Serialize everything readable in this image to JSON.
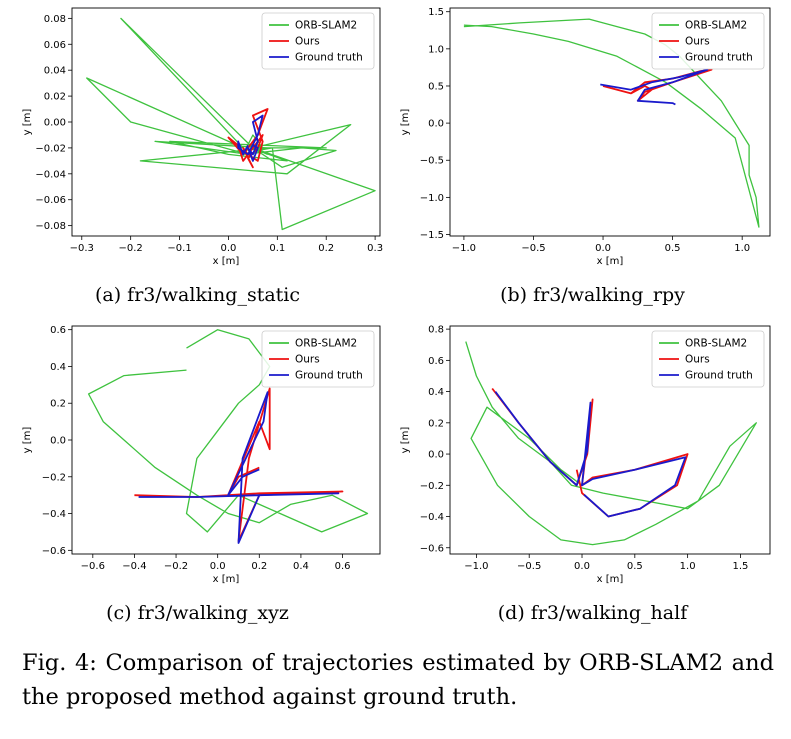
{
  "figure": {
    "caption": "Fig. 4: Comparison of trajectories estimated by ORB-SLAM2 and the proposed method against ground truth."
  },
  "colors": {
    "orb": "#3fc23f",
    "ours": "#ee1111",
    "gt": "#1a1acc"
  },
  "chart_data": [
    {
      "type": "line",
      "subcaption": "(a) fr3/walking_static",
      "xlabel": "x [m]",
      "ylabel": "y [m]",
      "xlim": [
        -0.32,
        0.31
      ],
      "ylim": [
        -0.088,
        0.088
      ],
      "xticks": [
        -0.3,
        -0.2,
        -0.1,
        0.0,
        0.1,
        0.2,
        0.3
      ],
      "xtick_labels": [
        "−0.3",
        "−0.2",
        "−0.1",
        "0.0",
        "0.1",
        "0.2",
        "0.3"
      ],
      "yticks": [
        0.08,
        0.06,
        0.04,
        0.02,
        0.0,
        -0.02,
        -0.04,
        -0.06,
        -0.08
      ],
      "ytick_labels": [
        "0.08",
        "0.06",
        "0.04",
        "0.02",
        "0.00",
        "−0.02",
        "−0.04",
        "−0.06",
        "−0.08"
      ],
      "legend_position": "top-right",
      "series": [
        {
          "name": "ORB-SLAM2",
          "x": [
            0.05,
            -0.22,
            0.03,
            -0.29,
            -0.2,
            0.04,
            -0.15,
            0.08,
            -0.18,
            0.12,
            0.25,
            0.05,
            0.3,
            0.11,
            0.09,
            0.06,
            0.12,
            0.0,
            -0.12,
            0.2,
            0.07,
            0.05,
            0.03,
            0.15,
            0.22,
            0.11,
            0.05,
            0.08
          ],
          "y": [
            -0.02,
            0.08,
            -0.02,
            0.034,
            0.0,
            -0.025,
            -0.015,
            -0.02,
            -0.03,
            -0.04,
            -0.002,
            -0.02,
            -0.053,
            -0.083,
            -0.02,
            -0.022,
            -0.03,
            -0.025,
            -0.015,
            -0.02,
            -0.02,
            -0.01,
            -0.025,
            -0.02,
            -0.022,
            -0.035,
            -0.02,
            -0.025
          ]
        },
        {
          "name": "Ours",
          "x": [
            0.05,
            0.03,
            0.02,
            0.0,
            0.03,
            0.06,
            0.08,
            0.05,
            0.07,
            0.06,
            0.04,
            0.03,
            0.05,
            0.04,
            0.06,
            0.07,
            0.05
          ],
          "y": [
            -0.02,
            -0.03,
            -0.018,
            -0.012,
            -0.025,
            -0.01,
            0.01,
            0.005,
            -0.015,
            -0.03,
            -0.025,
            -0.02,
            -0.035,
            -0.028,
            -0.02,
            -0.01,
            -0.02
          ]
        },
        {
          "name": "Ground truth",
          "x": [
            0.04,
            0.03,
            0.02,
            0.02,
            0.04,
            0.06,
            0.07,
            0.05,
            0.06,
            0.05,
            0.04,
            0.05,
            0.06,
            0.05
          ],
          "y": [
            -0.018,
            -0.025,
            -0.015,
            -0.02,
            -0.025,
            -0.01,
            0.005,
            0.0,
            -0.015,
            -0.025,
            -0.02,
            -0.03,
            -0.02,
            -0.018
          ]
        }
      ]
    },
    {
      "type": "line",
      "subcaption": "(b) fr3/walking_rpy",
      "xlabel": "x [m]",
      "ylabel": "y [m]",
      "xlim": [
        -1.1,
        1.2
      ],
      "ylim": [
        -1.52,
        1.55
      ],
      "xticks": [
        -1.0,
        -0.5,
        0.0,
        0.5,
        1.0
      ],
      "xtick_labels": [
        "−1.0",
        "−0.5",
        "0.0",
        "0.5",
        "1.0"
      ],
      "yticks": [
        1.5,
        1.0,
        0.5,
        0.0,
        -0.5,
        -1.0,
        -1.5
      ],
      "ytick_labels": [
        "1.5",
        "1.0",
        "0.5",
        "0.0",
        "−0.5",
        "−1.0",
        "−1.5"
      ],
      "legend_position": "top-right",
      "series": [
        {
          "name": "ORB-SLAM2",
          "x": [
            -1.0,
            -0.6,
            -0.3,
            -0.1,
            0.1,
            0.3,
            0.45,
            0.55,
            0.7,
            0.85,
            0.95,
            1.05,
            1.05,
            1.1,
            1.12,
            0.95,
            0.7,
            0.45,
            0.1,
            -0.25,
            -0.5,
            -0.8,
            -1.0
          ],
          "y": [
            1.3,
            1.35,
            1.38,
            1.4,
            1.3,
            1.2,
            1.05,
            0.9,
            0.6,
            0.3,
            0.0,
            -0.3,
            -0.7,
            -1.0,
            -1.4,
            -0.2,
            0.2,
            0.55,
            0.9,
            1.1,
            1.2,
            1.3,
            1.32
          ]
        },
        {
          "name": "Ours",
          "x": [
            0.0,
            0.2,
            0.3,
            0.5,
            0.7,
            0.78,
            0.5,
            0.3,
            0.25,
            0.35,
            0.3,
            0.2
          ],
          "y": [
            0.5,
            0.4,
            0.55,
            0.6,
            0.7,
            0.72,
            0.55,
            0.42,
            0.3,
            0.45,
            0.5,
            0.4
          ]
        },
        {
          "name": "Ground truth",
          "x": [
            -0.02,
            0.2,
            0.35,
            0.55,
            0.75,
            0.5,
            0.3,
            0.25,
            0.5,
            0.52
          ],
          "y": [
            0.52,
            0.45,
            0.55,
            0.62,
            0.72,
            0.55,
            0.45,
            0.3,
            0.27,
            0.25
          ]
        }
      ]
    },
    {
      "type": "line",
      "subcaption": "(c) fr3/walking_xyz",
      "xlabel": "x [m]",
      "ylabel": "y [m]",
      "xlim": [
        -0.7,
        0.78
      ],
      "ylim": [
        -0.62,
        0.62
      ],
      "xticks": [
        -0.6,
        -0.4,
        -0.2,
        0.0,
        0.2,
        0.4,
        0.6
      ],
      "xtick_labels": [
        "−0.6",
        "−0.4",
        "−0.2",
        "0.0",
        "0.2",
        "0.4",
        "0.6"
      ],
      "yticks": [
        0.6,
        0.4,
        0.2,
        0.0,
        -0.2,
        -0.4,
        -0.6
      ],
      "ytick_labels": [
        "0.6",
        "0.4",
        "0.2",
        "0.0",
        "−0.2",
        "−0.4",
        "−0.6"
      ],
      "legend_position": "top-right",
      "series": [
        {
          "name": "ORB-SLAM2",
          "x": [
            -0.15,
            -0.45,
            -0.62,
            -0.55,
            -0.4,
            -0.3,
            -0.1,
            0.05,
            0.2,
            0.35,
            0.55,
            0.72,
            0.5,
            0.3,
            0.1,
            -0.05,
            -0.15,
            -0.1,
            0.0,
            0.1,
            0.2,
            0.25,
            0.15,
            0.0,
            -0.15
          ],
          "y": [
            0.38,
            0.35,
            0.25,
            0.1,
            -0.05,
            -0.15,
            -0.3,
            -0.4,
            -0.45,
            -0.35,
            -0.3,
            -0.4,
            -0.5,
            -0.4,
            -0.3,
            -0.5,
            -0.4,
            -0.1,
            0.05,
            0.2,
            0.3,
            0.4,
            0.55,
            0.6,
            0.5
          ]
        },
        {
          "name": "Ours",
          "x": [
            -0.4,
            -0.1,
            0.2,
            0.6,
            0.2,
            0.1,
            0.15,
            0.25,
            0.25,
            0.2,
            0.05,
            0.1,
            0.2
          ],
          "y": [
            -0.3,
            -0.31,
            -0.29,
            -0.28,
            -0.3,
            -0.55,
            -0.1,
            0.28,
            -0.05,
            0.1,
            -0.3,
            -0.2,
            -0.15
          ]
        },
        {
          "name": "Ground truth",
          "x": [
            -0.38,
            -0.1,
            0.2,
            0.58,
            0.2,
            0.1,
            0.12,
            0.24,
            0.22,
            0.05,
            0.12,
            0.2
          ],
          "y": [
            -0.31,
            -0.31,
            -0.3,
            -0.29,
            -0.3,
            -0.56,
            -0.1,
            0.26,
            0.1,
            -0.3,
            -0.2,
            -0.16
          ]
        }
      ]
    },
    {
      "type": "line",
      "subcaption": "(d) fr3/walking_half",
      "xlabel": "x [m]",
      "ylabel": "y [m]",
      "xlim": [
        -1.25,
        1.78
      ],
      "ylim": [
        -0.64,
        0.82
      ],
      "xticks": [
        -1.0,
        -0.5,
        0.0,
        0.5,
        1.0,
        1.5
      ],
      "xtick_labels": [
        "−1.0",
        "−0.5",
        "0.0",
        "0.5",
        "1.0",
        "1.5"
      ],
      "yticks": [
        0.8,
        0.6,
        0.4,
        0.2,
        0.0,
        -0.2,
        -0.4,
        -0.6
      ],
      "ytick_labels": [
        "0.8",
        "0.6",
        "0.4",
        "0.2",
        "0.0",
        "−0.2",
        "−0.4",
        "−0.6"
      ],
      "legend_position": "top-right",
      "series": [
        {
          "name": "ORB-SLAM2",
          "x": [
            -1.1,
            -1.0,
            -0.85,
            -0.6,
            -0.3,
            -0.1,
            0.2,
            0.6,
            1.0,
            1.3,
            1.65,
            1.4,
            1.1,
            0.7,
            0.4,
            0.1,
            -0.2,
            -0.5,
            -0.8,
            -1.05,
            -0.9,
            -0.5,
            -0.2,
            0.0
          ],
          "y": [
            0.72,
            0.5,
            0.3,
            0.1,
            -0.05,
            -0.2,
            -0.25,
            -0.3,
            -0.35,
            -0.2,
            0.2,
            0.05,
            -0.3,
            -0.45,
            -0.55,
            -0.58,
            -0.55,
            -0.4,
            -0.2,
            0.1,
            0.3,
            0.1,
            -0.1,
            -0.2
          ]
        },
        {
          "name": "Ours",
          "x": [
            -0.85,
            -0.6,
            -0.3,
            -0.05,
            0.05,
            0.1,
            0.0,
            0.1,
            0.5,
            1.0,
            0.9,
            0.55,
            0.25,
            0.0,
            -0.05
          ],
          "y": [
            0.42,
            0.2,
            -0.05,
            -0.2,
            0.0,
            0.35,
            -0.2,
            -0.15,
            -0.1,
            0.0,
            -0.2,
            -0.35,
            -0.4,
            -0.25,
            -0.1
          ]
        },
        {
          "name": "Ground truth",
          "x": [
            -0.82,
            -0.6,
            -0.3,
            -0.05,
            0.05,
            0.08,
            0.0,
            0.1,
            0.5,
            0.98,
            0.88,
            0.55,
            0.25,
            0.02
          ],
          "y": [
            0.4,
            0.2,
            -0.05,
            -0.2,
            0.02,
            0.33,
            -0.2,
            -0.16,
            -0.1,
            -0.02,
            -0.2,
            -0.35,
            -0.4,
            -0.26
          ]
        }
      ]
    }
  ]
}
